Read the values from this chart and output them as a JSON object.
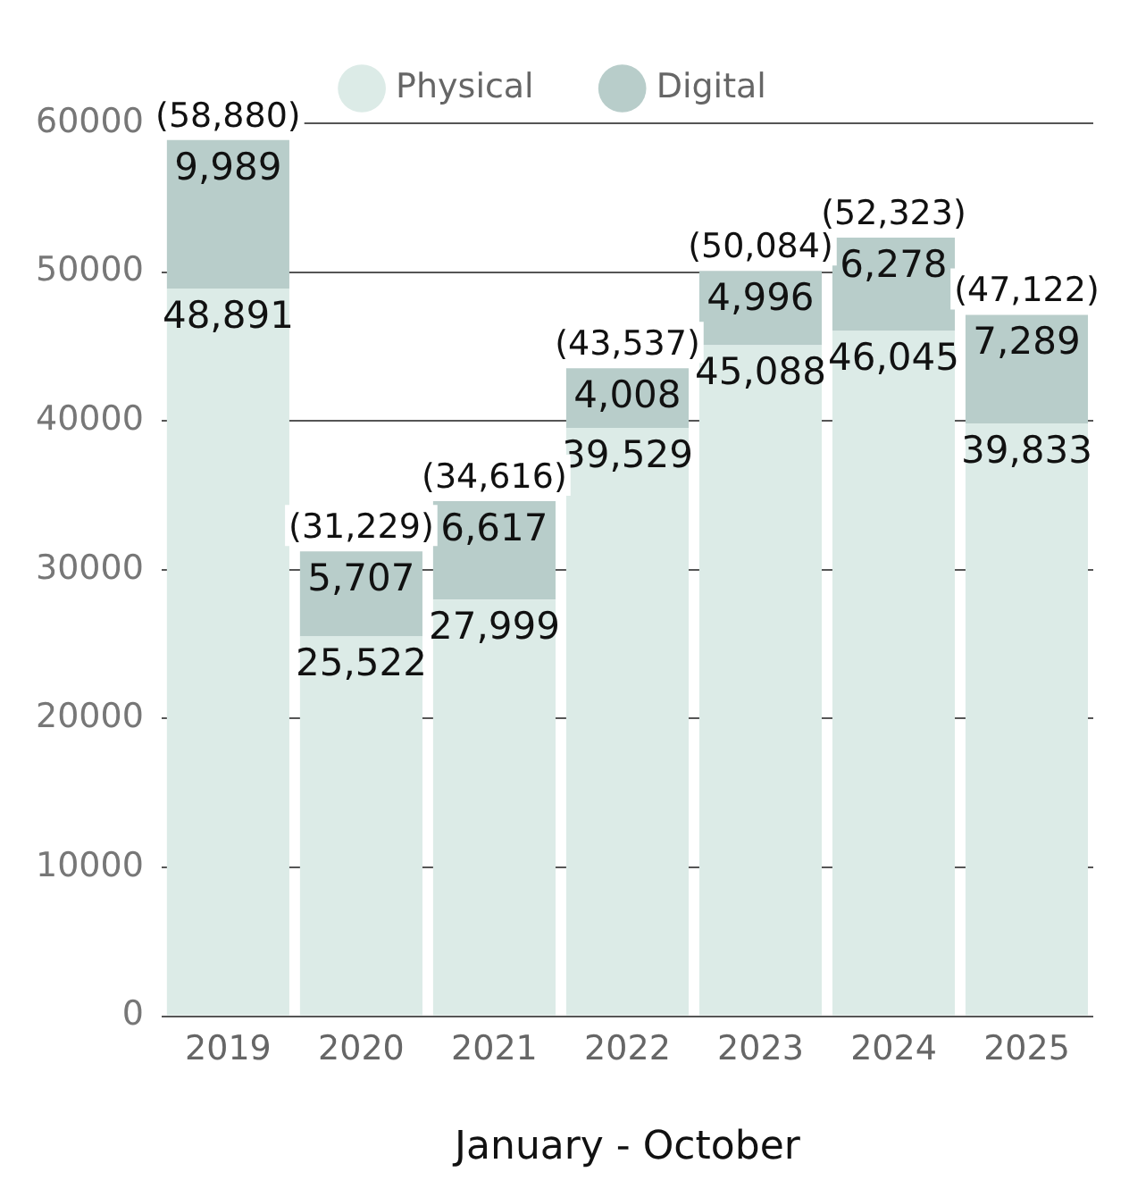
{
  "chart_data": {
    "type": "bar",
    "stacked": true,
    "xlabel": "January - October",
    "categories": [
      "2019",
      "2020",
      "2021",
      "2022",
      "2023",
      "2024",
      "2025"
    ],
    "series": [
      {
        "name": "Physical",
        "color": "#dcebe7",
        "values": [
          48891,
          25522,
          27999,
          39529,
          45088,
          46045,
          39833
        ],
        "value_labels": [
          "48,891",
          "25,522",
          "27,999",
          "39,529",
          "45,088",
          "46,045",
          "39,833"
        ]
      },
      {
        "name": "Digital",
        "color": "#b8cdca",
        "values": [
          9989,
          5707,
          6617,
          4008,
          4996,
          6278,
          7289
        ],
        "value_labels": [
          "9,989",
          "5,707",
          "6,617",
          "4,008",
          "4,996",
          "6,278",
          "7,289"
        ]
      }
    ],
    "totals": [
      "(58,880)",
      "(31,229)",
      "(34,616)",
      "(43,537)",
      "(50,084)",
      "(52,323)",
      "(47,122)"
    ],
    "ylim": [
      0,
      60000
    ],
    "yticks": [
      0,
      10000,
      20000,
      30000,
      40000,
      50000,
      60000
    ],
    "grid": "y",
    "legend": "top"
  }
}
